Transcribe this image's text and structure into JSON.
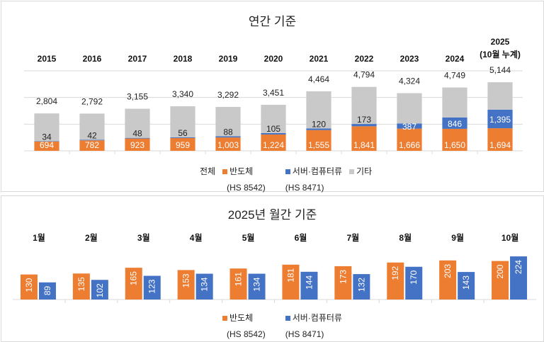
{
  "chart_data": [
    {
      "type": "bar",
      "stacked": true,
      "title": "연간 기준",
      "categories": [
        "2015",
        "2016",
        "2017",
        "2018",
        "2019",
        "2020",
        "2021",
        "2022",
        "2023",
        "2024",
        "2025\n(10월 누계)"
      ],
      "totals": [
        2804,
        2792,
        3155,
        3340,
        3292,
        3451,
        4464,
        4794,
        4324,
        4749,
        5144
      ],
      "series": [
        {
          "name": "반도체",
          "code": "(HS 8542)",
          "color": "#ED7D31",
          "values": [
            694,
            782,
            923,
            959,
            1003,
            1224,
            1555,
            1841,
            1666,
            1650,
            1694
          ]
        },
        {
          "name": "서버·컴퓨터류",
          "code": "(HS 8471)",
          "color": "#4472C4",
          "values": [
            34,
            42,
            48,
            56,
            88,
            105,
            120,
            173,
            387,
            846,
            1395
          ]
        },
        {
          "name": "기타",
          "color": "#C9C9C9",
          "values": [
            2076,
            1968,
            2184,
            2325,
            2201,
            2122,
            2789,
            2780,
            2271,
            2253,
            2055
          ]
        }
      ],
      "total_label": "전체",
      "ylim": [
        0,
        6000
      ],
      "grid": true,
      "legend": "bottom"
    },
    {
      "type": "bar",
      "title": "2025년 월간 기준",
      "categories": [
        "1월",
        "2월",
        "3월",
        "4월",
        "5월",
        "6월",
        "7월",
        "8월",
        "9월",
        "10월"
      ],
      "series": [
        {
          "name": "반도체",
          "code": "(HS 8542)",
          "color": "#ED7D31",
          "values": [
            130,
            135,
            165,
            153,
            161,
            181,
            173,
            192,
            203,
            200
          ]
        },
        {
          "name": "서버·컴퓨터류",
          "code": "(HS 8471)",
          "color": "#4472C4",
          "values": [
            89,
            102,
            123,
            134,
            134,
            144,
            132,
            170,
            143,
            224
          ]
        }
      ],
      "ylim": [
        0,
        250
      ],
      "legend": "bottom"
    }
  ]
}
